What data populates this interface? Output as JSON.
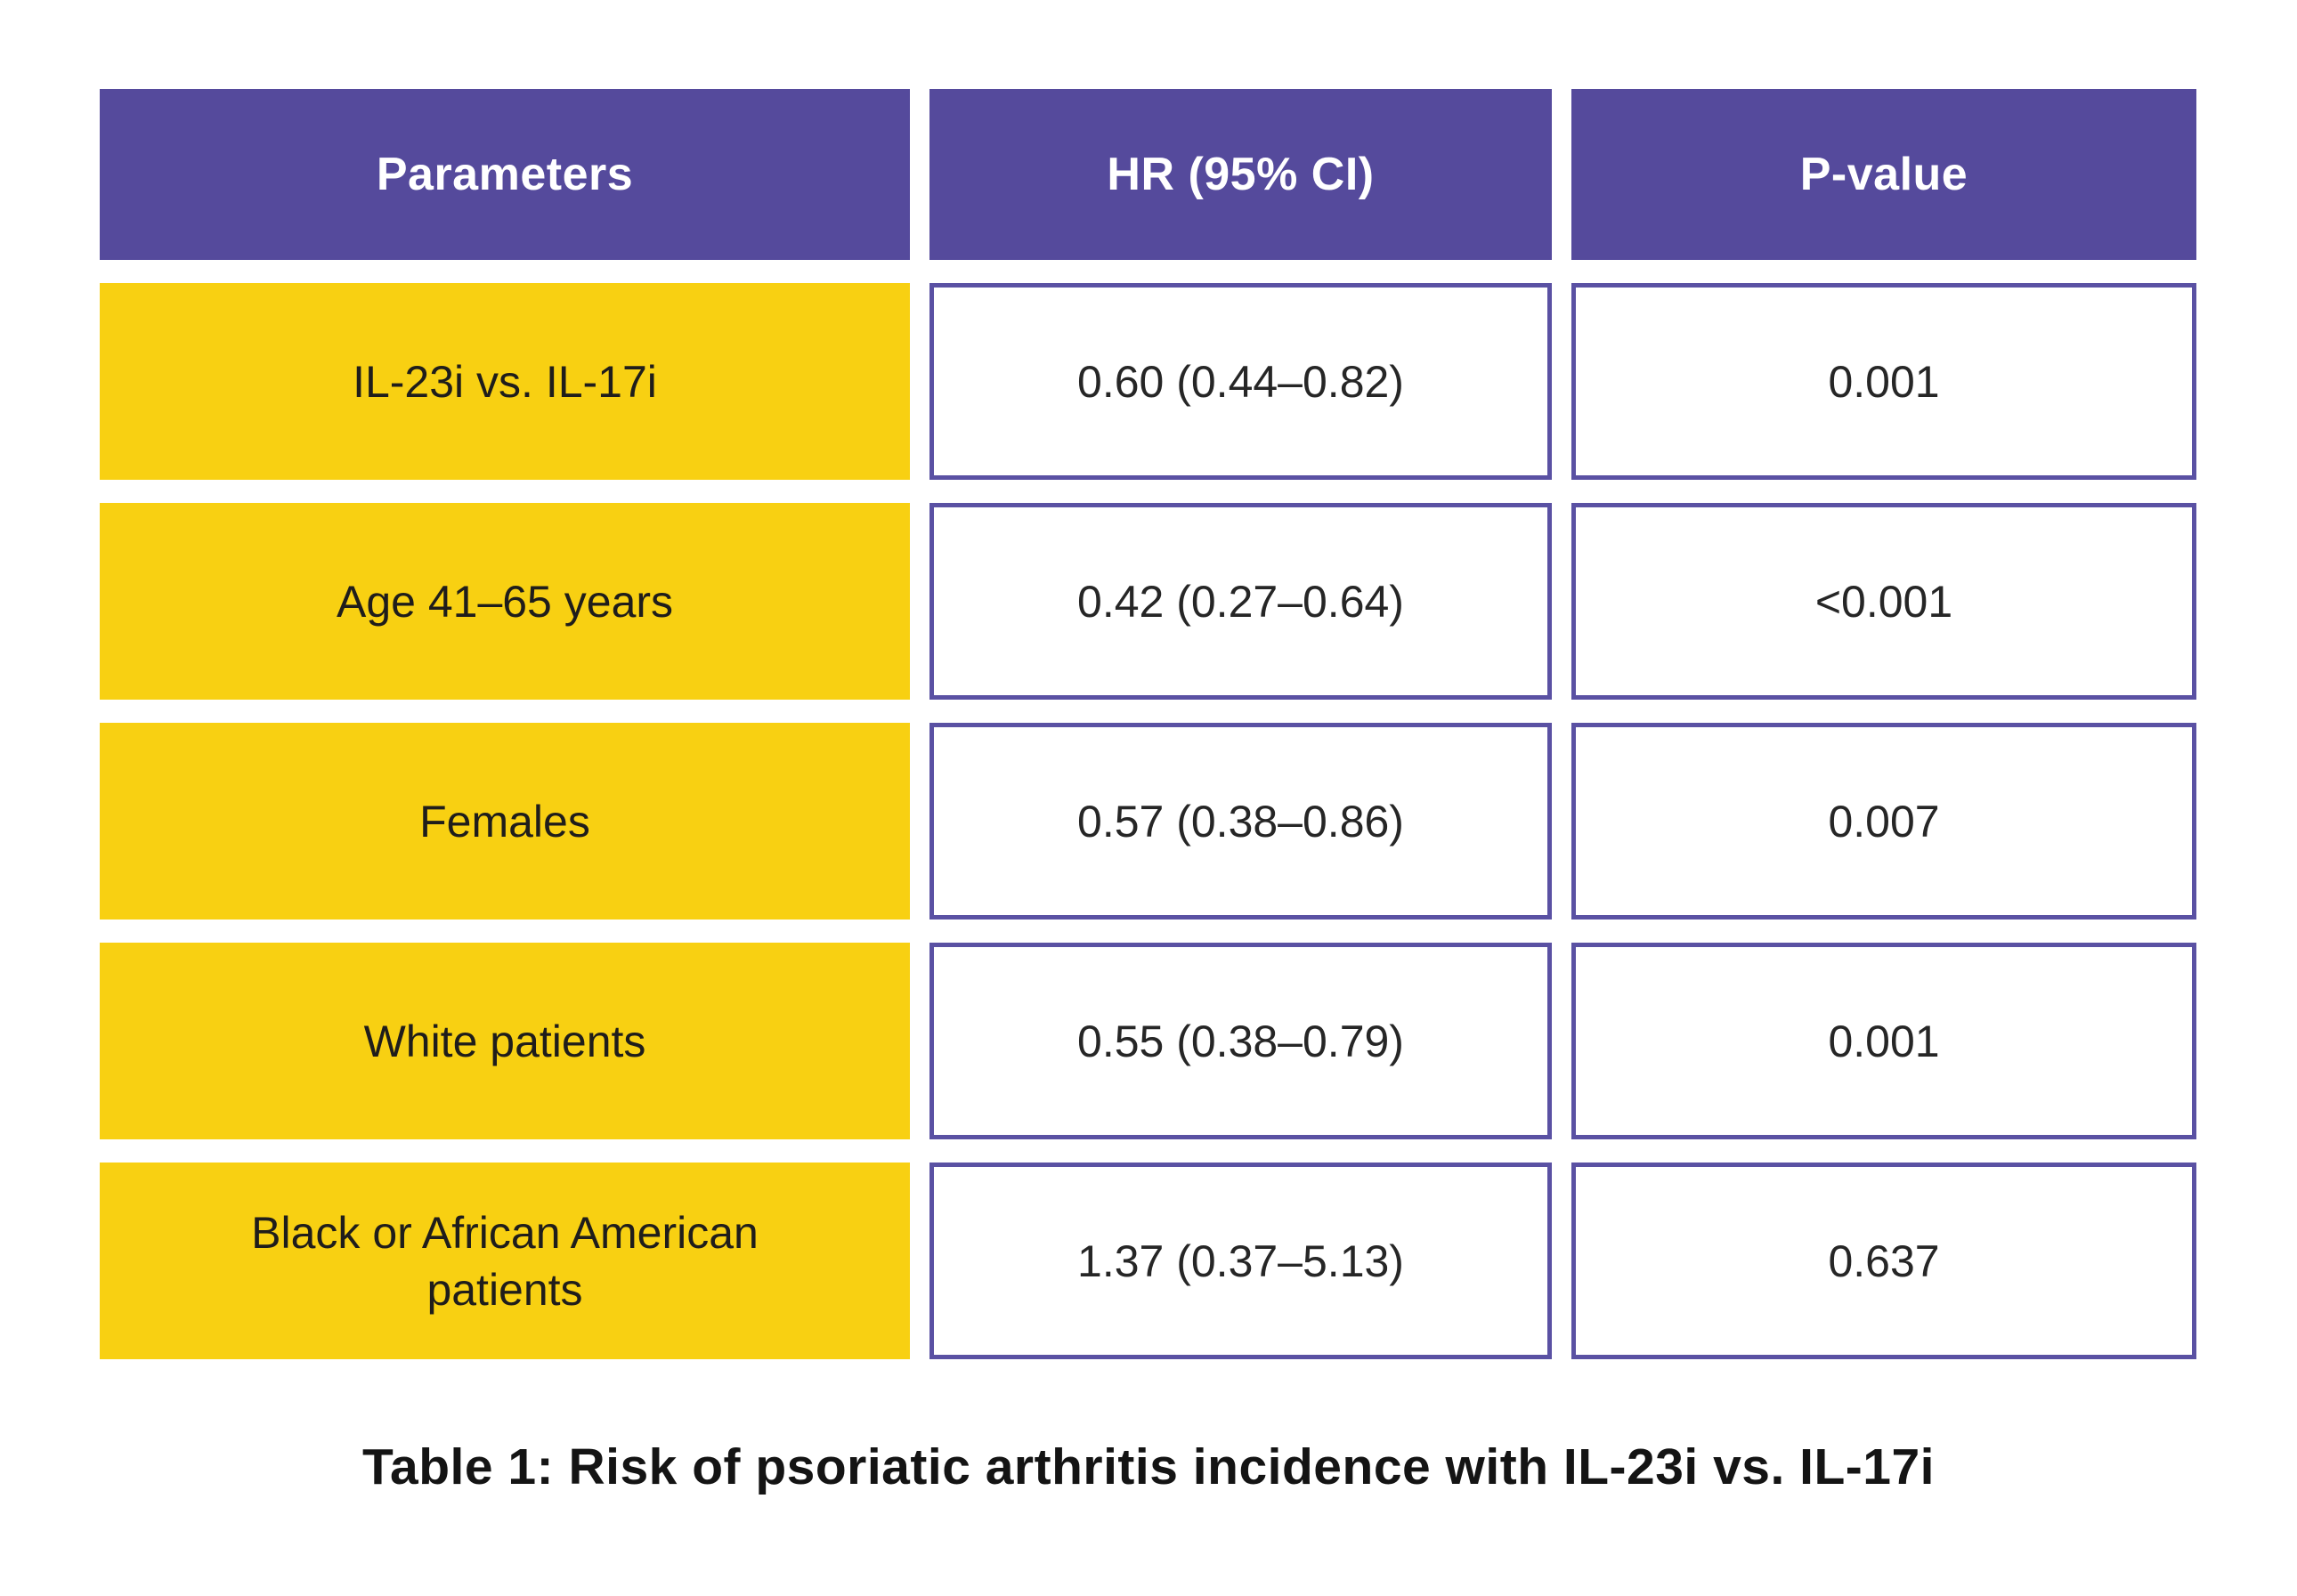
{
  "chart_data": {
    "type": "table",
    "columns": [
      "Parameters",
      "HR (95% CI)",
      "P-value"
    ],
    "rows": [
      {
        "parameter": "IL-23i vs. IL-17i",
        "hr": "0.60 (0.44–0.82)",
        "p": "0.001"
      },
      {
        "parameter": "Age 41–65 years",
        "hr": "0.42 (0.27–0.64)",
        "p": "<0.001"
      },
      {
        "parameter": "Females",
        "hr": "0.57 (0.38–0.86)",
        "p": "0.007"
      },
      {
        "parameter": "White patients",
        "hr": "0.55 (0.38–0.79)",
        "p": "0.001"
      },
      {
        "parameter": "Black or African American patients",
        "hr": "1.37 (0.37–5.13)",
        "p": "0.637"
      }
    ],
    "caption": "Table 1: Risk of psoriatic arthritis incidence with IL-23i vs. IL-17i",
    "layout_hints": "header row purple with white bold text; parameter column yellow; value cells white with purple border; caption centered below table"
  },
  "colors": {
    "header_bg": "#554a9c",
    "header_text": "#ffffff",
    "parameter_bg": "#f8d012",
    "parameter_text": "#1f1d1b",
    "value_cell_border": "#5a51a3",
    "value_cell_bg": "#ffffff",
    "value_text": "#262626",
    "caption_text": "#141414",
    "page_bg": "#ffffff"
  }
}
